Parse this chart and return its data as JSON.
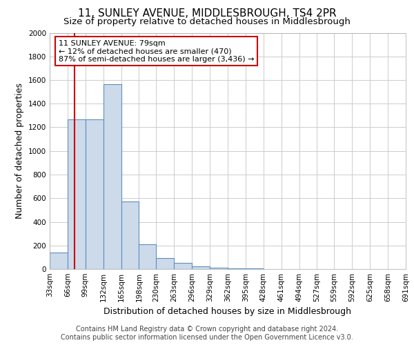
{
  "title": "11, SUNLEY AVENUE, MIDDLESBROUGH, TS4 2PR",
  "subtitle": "Size of property relative to detached houses in Middlesbrough",
  "xlabel": "Distribution of detached houses by size in Middlesbrough",
  "ylabel": "Number of detached properties",
  "bin_edges": [
    33,
    66,
    99,
    132,
    165,
    198,
    230,
    263,
    296,
    329,
    362,
    395,
    428,
    461,
    494,
    527,
    559,
    592,
    625,
    658,
    691
  ],
  "bin_labels": [
    "33sqm",
    "66sqm",
    "99sqm",
    "132sqm",
    "165sqm",
    "198sqm",
    "230sqm",
    "263sqm",
    "296sqm",
    "329sqm",
    "362sqm",
    "395sqm",
    "428sqm",
    "461sqm",
    "494sqm",
    "527sqm",
    "559sqm",
    "592sqm",
    "625sqm",
    "658sqm",
    "691sqm"
  ],
  "bar_values": [
    140,
    1265,
    1270,
    1565,
    570,
    210,
    95,
    50,
    25,
    10,
    5,
    3,
    0,
    0,
    0,
    0,
    0,
    0,
    0,
    0
  ],
  "bar_color": "#cddaea",
  "bar_edge_color": "#5a8fc0",
  "property_line_x": 79,
  "property_line_color": "#cc0000",
  "ylim": [
    0,
    2000
  ],
  "yticks": [
    0,
    200,
    400,
    600,
    800,
    1000,
    1200,
    1400,
    1600,
    1800,
    2000
  ],
  "annotation_title": "11 SUNLEY AVENUE: 79sqm",
  "annotation_line1": "← 12% of detached houses are smaller (470)",
  "annotation_line2": "87% of semi-detached houses are larger (3,436) →",
  "annotation_box_color": "#ffffff",
  "annotation_box_edge": "#cc0000",
  "footer_line1": "Contains HM Land Registry data © Crown copyright and database right 2024.",
  "footer_line2": "Contains public sector information licensed under the Open Government Licence v3.0.",
  "background_color": "#ffffff",
  "grid_color": "#cccccc",
  "title_fontsize": 11,
  "subtitle_fontsize": 9.5,
  "axis_label_fontsize": 9,
  "tick_label_fontsize": 7.5,
  "annotation_fontsize": 8,
  "footer_fontsize": 7
}
